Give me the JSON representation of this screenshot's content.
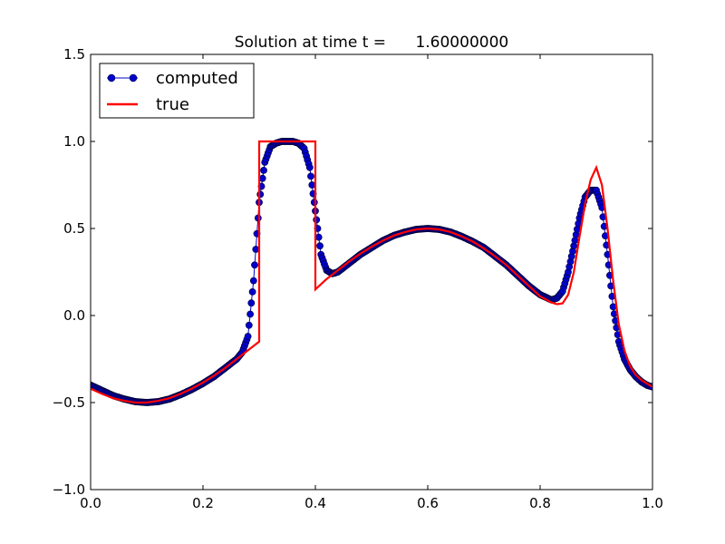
{
  "chart_data": {
    "type": "line",
    "title": "Solution at time t =      1.60000000",
    "xlabel": "",
    "ylabel": "",
    "xlim": [
      0.0,
      1.0
    ],
    "ylim": [
      -1.0,
      1.5
    ],
    "x_ticks": [
      "0.0",
      "0.2",
      "0.4",
      "0.6",
      "0.8",
      "1.0"
    ],
    "y_ticks": [
      "−1.0",
      "−0.5",
      "0.0",
      "0.5",
      "1.0",
      "1.5"
    ],
    "grid": false,
    "legend_position": "top-left",
    "series": [
      {
        "name": "computed",
        "style": "line-with-markers",
        "color": "#0000cc",
        "marker_edge": "#000033",
        "x": [
          0.0,
          0.02,
          0.04,
          0.06,
          0.08,
          0.1,
          0.12,
          0.14,
          0.16,
          0.18,
          0.2,
          0.22,
          0.24,
          0.26,
          0.27,
          0.28,
          0.29,
          0.3,
          0.31,
          0.32,
          0.33,
          0.34,
          0.35,
          0.36,
          0.37,
          0.38,
          0.39,
          0.4,
          0.41,
          0.42,
          0.43,
          0.44,
          0.46,
          0.48,
          0.5,
          0.52,
          0.54,
          0.56,
          0.58,
          0.6,
          0.62,
          0.64,
          0.66,
          0.68,
          0.7,
          0.72,
          0.74,
          0.76,
          0.78,
          0.8,
          0.82,
          0.83,
          0.84,
          0.85,
          0.86,
          0.87,
          0.88,
          0.89,
          0.9,
          0.91,
          0.92,
          0.93,
          0.94,
          0.95,
          0.96,
          0.97,
          0.98,
          0.99,
          1.0
        ],
        "y": [
          -0.4,
          -0.43,
          -0.46,
          -0.48,
          -0.495,
          -0.5,
          -0.495,
          -0.48,
          -0.455,
          -0.425,
          -0.39,
          -0.35,
          -0.3,
          -0.25,
          -0.21,
          -0.12,
          0.2,
          0.65,
          0.88,
          0.97,
          0.99,
          1.0,
          1.0,
          1.0,
          0.99,
          0.96,
          0.85,
          0.6,
          0.35,
          0.26,
          0.24,
          0.25,
          0.3,
          0.35,
          0.39,
          0.43,
          0.46,
          0.48,
          0.495,
          0.5,
          0.495,
          0.48,
          0.455,
          0.425,
          0.39,
          0.34,
          0.29,
          0.23,
          0.17,
          0.12,
          0.09,
          0.1,
          0.14,
          0.25,
          0.4,
          0.56,
          0.68,
          0.72,
          0.72,
          0.62,
          0.35,
          0.05,
          -0.15,
          -0.25,
          -0.31,
          -0.35,
          -0.38,
          -0.4,
          -0.41
        ]
      },
      {
        "name": "true",
        "style": "line",
        "color": "#ff0000",
        "x": [
          0.0,
          0.02,
          0.04,
          0.06,
          0.08,
          0.1,
          0.12,
          0.14,
          0.16,
          0.18,
          0.2,
          0.22,
          0.24,
          0.26,
          0.28,
          0.3,
          0.3,
          0.4,
          0.4,
          0.42,
          0.44,
          0.46,
          0.48,
          0.5,
          0.52,
          0.54,
          0.56,
          0.58,
          0.6,
          0.62,
          0.64,
          0.66,
          0.68,
          0.7,
          0.72,
          0.74,
          0.76,
          0.78,
          0.8,
          0.82,
          0.83,
          0.84,
          0.85,
          0.86,
          0.87,
          0.88,
          0.89,
          0.9,
          0.91,
          0.92,
          0.93,
          0.94,
          0.95,
          0.96,
          0.97,
          0.98,
          0.99,
          1.0
        ],
        "y": [
          -0.42,
          -0.45,
          -0.475,
          -0.49,
          -0.5,
          -0.5,
          -0.49,
          -0.475,
          -0.45,
          -0.42,
          -0.385,
          -0.345,
          -0.3,
          -0.25,
          -0.2,
          -0.15,
          1.0,
          1.0,
          0.15,
          0.21,
          0.26,
          0.31,
          0.355,
          0.395,
          0.43,
          0.46,
          0.48,
          0.495,
          0.5,
          0.495,
          0.48,
          0.455,
          0.425,
          0.385,
          0.34,
          0.29,
          0.23,
          0.17,
          0.11,
          0.075,
          0.065,
          0.07,
          0.12,
          0.25,
          0.45,
          0.64,
          0.78,
          0.85,
          0.75,
          0.5,
          0.2,
          -0.05,
          -0.2,
          -0.29,
          -0.34,
          -0.37,
          -0.39,
          -0.41
        ]
      }
    ]
  }
}
